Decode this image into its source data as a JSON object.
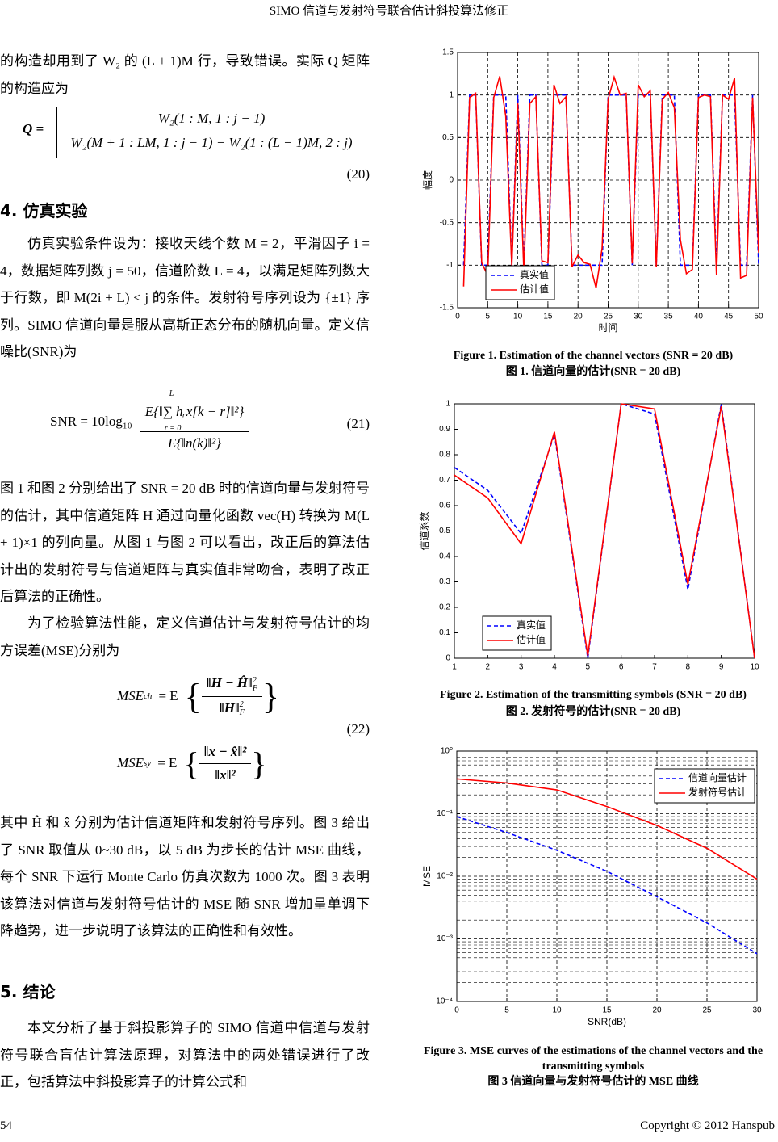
{
  "header": {
    "title": "SIMO 信道与发射符号联合估计斜投算法修正"
  },
  "body": {
    "paragraphs": [
      "的构造却用到了 W₂ 的 (L + 1)M 行，导致错误。实际 Q 矩阵的构造应为",
      "仿真实验条件设为：接收天线个数 M = 2，平滑因子 i = 4，数据矩阵列数 j = 50，信道阶数 L = 4，以满足矩阵列数大于行数，即 M(2i + L) < j 的条件。发射符号序列设为 {±1} 序列。SIMO 信道向量是服从高斯正态分布的随机向量。定义信噪比(SNR)为",
      "图 1 和图 2 分别给出了 SNR = 20 dB 时的信道向量与发射符号的估计，其中信道矩阵 H 通过向量化函数 vec(H) 转换为 M(L + 1)×1 的列向量。从图 1 与图 2 可以看出，改正后的算法估计出的发射符号与信道矩阵与真实值非常吻合，表明了改正后算法的正确性。",
      "为了检验算法性能，定义信道估计与发射符号估计的均方误差(MSE)分别为",
      "其中 Ĥ 和 x̂ 分别为估计信道矩阵和发射符号序列。图 3 给出了 SNR 取值从 0~30 dB，以 5 dB 为步长的估计 MSE 曲线，每个 SNR 下运行 Monte Carlo 仿真次数为 1000 次。图 3 表明该算法对信道与发射符号估计的 MSE 随 SNR 增加呈单调下降趋势，进一步说明了该算法的正确性和有效性。",
      "本文分析了基于斜投影算子的 SIMO 信道中信道与发射符号联合盲估计算法原理，对算法中的两处错误进行了改正，包括算法中斜投影算子的计算公式和"
    ],
    "headings": [
      "4.  仿真实验",
      "5.  结论"
    ],
    "equations": [
      {
        "lhs": "Q =",
        "rows": [
          "W₂(1 : M, 1 : j − 1)",
          "W₂(M + 1 : LM, 1 : j − 1) − W₂(1 : (L − 1)M, 2 : j)"
        ],
        "number": "(20)"
      },
      {
        "lhs": "SNR = 10log₁₀",
        "numerator": "E{‖∑ hᵣx[k − r]‖²}",
        "sum_upper": "L",
        "sum_lower": "r = 0",
        "denominator": "E{‖n(k)‖²}",
        "number": "(21)"
      },
      {
        "lines": [
          {
            "lhs": "MSE",
            "sub": "ch",
            "operator": "= E",
            "numerator": "‖H − Ĥ‖",
            "sup": "2",
            "norm_sub": "F",
            "denominator": "‖H‖"
          },
          {
            "lhs": "MSE",
            "sub": "sy",
            "operator": "= E",
            "numerator": "‖x − x̂‖²",
            "denominator": "‖x‖²"
          }
        ],
        "number": "(22)"
      }
    ]
  },
  "chart_data": [
    {
      "type": "line",
      "caption": "Figure 1. Estimation of the channel vectors (SNR = 20 dB)",
      "caption_zh": "图 1.  信道向量的估计(SNR = 20 dB)",
      "xlabel": "时间",
      "ylabel": "幅度",
      "x": [
        1,
        2,
        3,
        4,
        5,
        6,
        7,
        8,
        9,
        10,
        11,
        12,
        13,
        14,
        15,
        16,
        17,
        18,
        19,
        20,
        21,
        22,
        23,
        24,
        25,
        26,
        27,
        28,
        29,
        30,
        31,
        32,
        33,
        34,
        35,
        36,
        37,
        38,
        39,
        40,
        41,
        42,
        43,
        44,
        45,
        46,
        47,
        48,
        49,
        50
      ],
      "series": [
        {
          "name": "真实值",
          "color": "#0000ff",
          "linestyle": "dashed",
          "values": [
            -1,
            1,
            1,
            -1,
            -1,
            1,
            1,
            1,
            -1,
            1,
            -1,
            1,
            1,
            -1,
            -1,
            1,
            1,
            1,
            -1,
            -1,
            -1,
            -1,
            -1,
            -1,
            1,
            1,
            1,
            1,
            -1,
            1,
            1,
            1,
            -1,
            1,
            1,
            1,
            -1,
            -1,
            -1,
            1,
            1,
            1,
            -1,
            1,
            1,
            1,
            -1,
            -1,
            1,
            -1
          ]
        },
        {
          "name": "估计值",
          "color": "#ff0000",
          "linestyle": "solid",
          "values": [
            -1.25,
            0.97,
            1.02,
            -0.97,
            -1.12,
            0.97,
            1.22,
            0.75,
            -1.02,
            0.9,
            -1.07,
            0.9,
            0.98,
            -0.95,
            -0.97,
            1.12,
            0.9,
            0.98,
            -1.02,
            -0.88,
            -0.97,
            -0.99,
            -1.27,
            -0.8,
            0.95,
            1.21,
            1.0,
            1.02,
            -0.98,
            1.12,
            0.98,
            1.05,
            -1.02,
            0.95,
            1.03,
            0.85,
            -0.7,
            -1.1,
            -1.05,
            0.97,
            1.0,
            0.98,
            -1.12,
            1.0,
            0.95,
            1.2,
            -1.15,
            -1.12,
            0.97,
            -0.85
          ]
        }
      ],
      "xlim": [
        0,
        50
      ],
      "xticks": [
        0,
        5,
        10,
        15,
        20,
        25,
        30,
        35,
        40,
        45,
        50
      ],
      "ylim": [
        -1.5,
        1.5
      ],
      "yticks": [
        -1.5,
        -1,
        -0.5,
        0,
        0.5,
        1,
        1.5
      ],
      "grid": true,
      "legend": "lower left"
    },
    {
      "type": "line",
      "caption": "Figure 2. Estimation of the transmitting symbols (SNR = 20 dB)",
      "caption_zh": "图 2.  发射符号的估计(SNR = 20 dB)",
      "ylabel": "信道系数",
      "x": [
        1,
        2,
        3,
        4,
        5,
        6,
        7,
        8,
        9,
        10
      ],
      "series": [
        {
          "name": "真实值",
          "color": "#0000ff",
          "linestyle": "dashed",
          "values": [
            0.75,
            0.66,
            0.49,
            0.88,
            0.0,
            1.0,
            0.96,
            0.27,
            1.0,
            0.0
          ]
        },
        {
          "name": "估计值",
          "color": "#ff0000",
          "linestyle": "solid",
          "values": [
            0.72,
            0.63,
            0.45,
            0.89,
            0.01,
            1.0,
            0.98,
            0.29,
            0.99,
            0.0
          ]
        }
      ],
      "xlim": [
        1,
        10
      ],
      "xticks": [
        1,
        2,
        3,
        4,
        5,
        6,
        7,
        8,
        9,
        10
      ],
      "ylim": [
        0,
        1
      ],
      "yticks": [
        0,
        0.1,
        0.2,
        0.3,
        0.4,
        0.5,
        0.6,
        0.7,
        0.8,
        0.9,
        1
      ],
      "grid": false,
      "legend": "lower left"
    },
    {
      "type": "line",
      "caption": "Figure 3. MSE curves of the estimations of the channel vectors and the transmitting symbols",
      "caption_zh": "图 3  信道向量与发射符号估计的 MSE 曲线",
      "xlabel": "SNR(dB)",
      "ylabel": "MSE",
      "x": [
        0,
        5,
        10,
        15,
        20,
        25,
        30
      ],
      "series": [
        {
          "name": "信道向量估计",
          "color": "#0000ff",
          "linestyle": "dashed",
          "values": [
            0.09,
            0.05,
            0.026,
            0.012,
            0.0047,
            0.0018,
            0.00058
          ]
        },
        {
          "name": "发射符号估计",
          "color": "#ff0000",
          "linestyle": "solid",
          "values": [
            0.36,
            0.31,
            0.24,
            0.13,
            0.065,
            0.028,
            0.009
          ]
        }
      ],
      "xlim": [
        0,
        30
      ],
      "xticks": [
        0,
        5,
        10,
        15,
        20,
        25,
        30
      ],
      "ylim": [
        0.0001,
        1
      ],
      "yscale": "log",
      "yticks": [
        {
          "value": 0.0001,
          "label": "10⁻⁴"
        },
        {
          "value": 0.001,
          "label": "10⁻³"
        },
        {
          "value": 0.01,
          "label": "10⁻²"
        },
        {
          "value": 0.1,
          "label": "10⁻¹"
        },
        {
          "value": 1,
          "label": "10⁰"
        }
      ],
      "grid": true,
      "legend": "upper right"
    }
  ],
  "footer": {
    "page": "54",
    "copyright": "Copyright © 2012 Hanspub"
  }
}
